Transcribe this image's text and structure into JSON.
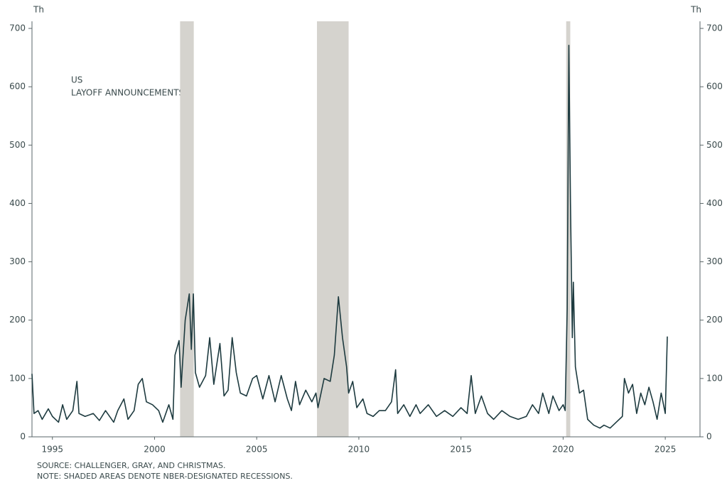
{
  "chart_data": {
    "type": "line",
    "y_unit_left": "Th",
    "y_unit_right": "Th",
    "annotation": [
      "US",
      "LAYOFF ANNOUNCEMENTS"
    ],
    "notes": [
      "SOURCE: CHALLENGER, GRAY, AND CHRISTMAS.",
      "NOTE: SHADED AREAS DENOTE NBER-DESIGNATED RECESSIONS."
    ],
    "xlim": [
      1994,
      2026.7
    ],
    "xticks": [
      1995,
      2000,
      2005,
      2010,
      2015,
      2020,
      2025
    ],
    "ylim": [
      0,
      700
    ],
    "yticks": [
      0,
      100,
      200,
      300,
      400,
      500,
      600,
      700
    ],
    "y2lim": [
      0,
      700
    ],
    "y2ticks": [
      0,
      100,
      200,
      300,
      400,
      500,
      600,
      700
    ],
    "recessions": [
      [
        2001.25,
        2001.92
      ],
      [
        2007.95,
        2009.5
      ],
      [
        2020.15,
        2020.35
      ]
    ],
    "recession_color": "#d5d3ce",
    "series": [
      {
        "color": "#1d3a3f",
        "x": [
          1994.0,
          1994.1,
          1994.3,
          1994.5,
          1994.8,
          1995.0,
          1995.3,
          1995.5,
          1995.7,
          1996.0,
          1996.2,
          1996.3,
          1996.6,
          1997.0,
          1997.3,
          1997.6,
          1998.0,
          1998.2,
          1998.5,
          1998.7,
          1999.0,
          1999.2,
          1999.4,
          1999.6,
          1999.9,
          2000.2,
          2000.4,
          2000.7,
          2000.9,
          2001.0,
          2001.2,
          2001.3,
          2001.5,
          2001.7,
          2001.8,
          2001.9,
          2002.0,
          2002.2,
          2002.5,
          2002.7,
          2002.9,
          2003.2,
          2003.4,
          2003.6,
          2003.8,
          2004.0,
          2004.2,
          2004.5,
          2004.8,
          2005.0,
          2005.3,
          2005.6,
          2005.9,
          2006.2,
          2006.5,
          2006.7,
          2006.9,
          2007.1,
          2007.4,
          2007.7,
          2007.9,
          2008.0,
          2008.3,
          2008.6,
          2008.8,
          2009.0,
          2009.2,
          2009.4,
          2009.5,
          2009.7,
          2009.9,
          2010.2,
          2010.4,
          2010.7,
          2011.0,
          2011.3,
          2011.6,
          2011.8,
          2011.9,
          2012.2,
          2012.5,
          2012.8,
          2013.0,
          2013.4,
          2013.8,
          2014.2,
          2014.6,
          2015.0,
          2015.3,
          2015.5,
          2015.7,
          2016.0,
          2016.3,
          2016.6,
          2017.0,
          2017.4,
          2017.8,
          2018.2,
          2018.5,
          2018.8,
          2019.0,
          2019.3,
          2019.5,
          2019.8,
          2020.0,
          2020.1,
          2020.2,
          2020.28,
          2020.36,
          2020.45,
          2020.5,
          2020.6,
          2020.8,
          2021.0,
          2021.2,
          2021.5,
          2021.8,
          2022.0,
          2022.3,
          2022.6,
          2022.9,
          2023.0,
          2023.2,
          2023.4,
          2023.6,
          2023.8,
          2024.0,
          2024.2,
          2024.4,
          2024.6,
          2024.8,
          2025.0,
          2025.1
        ],
        "values": [
          108,
          40,
          45,
          30,
          48,
          35,
          25,
          55,
          30,
          45,
          95,
          40,
          35,
          40,
          28,
          45,
          25,
          45,
          65,
          30,
          45,
          90,
          100,
          60,
          55,
          45,
          25,
          55,
          30,
          140,
          165,
          85,
          200,
          245,
          150,
          245,
          110,
          85,
          105,
          170,
          90,
          160,
          70,
          80,
          170,
          110,
          75,
          70,
          100,
          105,
          65,
          105,
          60,
          105,
          65,
          45,
          95,
          55,
          80,
          60,
          75,
          50,
          100,
          95,
          140,
          240,
          170,
          120,
          75,
          95,
          50,
          65,
          40,
          35,
          45,
          45,
          60,
          115,
          40,
          55,
          35,
          55,
          40,
          55,
          35,
          45,
          35,
          50,
          40,
          105,
          40,
          70,
          40,
          30,
          45,
          35,
          30,
          35,
          55,
          40,
          75,
          40,
          70,
          45,
          55,
          45,
          220,
          671,
          400,
          170,
          265,
          120,
          75,
          80,
          30,
          20,
          15,
          20,
          15,
          25,
          35,
          100,
          75,
          90,
          40,
          75,
          55,
          85,
          60,
          30,
          75,
          40,
          172
        ]
      }
    ]
  }
}
